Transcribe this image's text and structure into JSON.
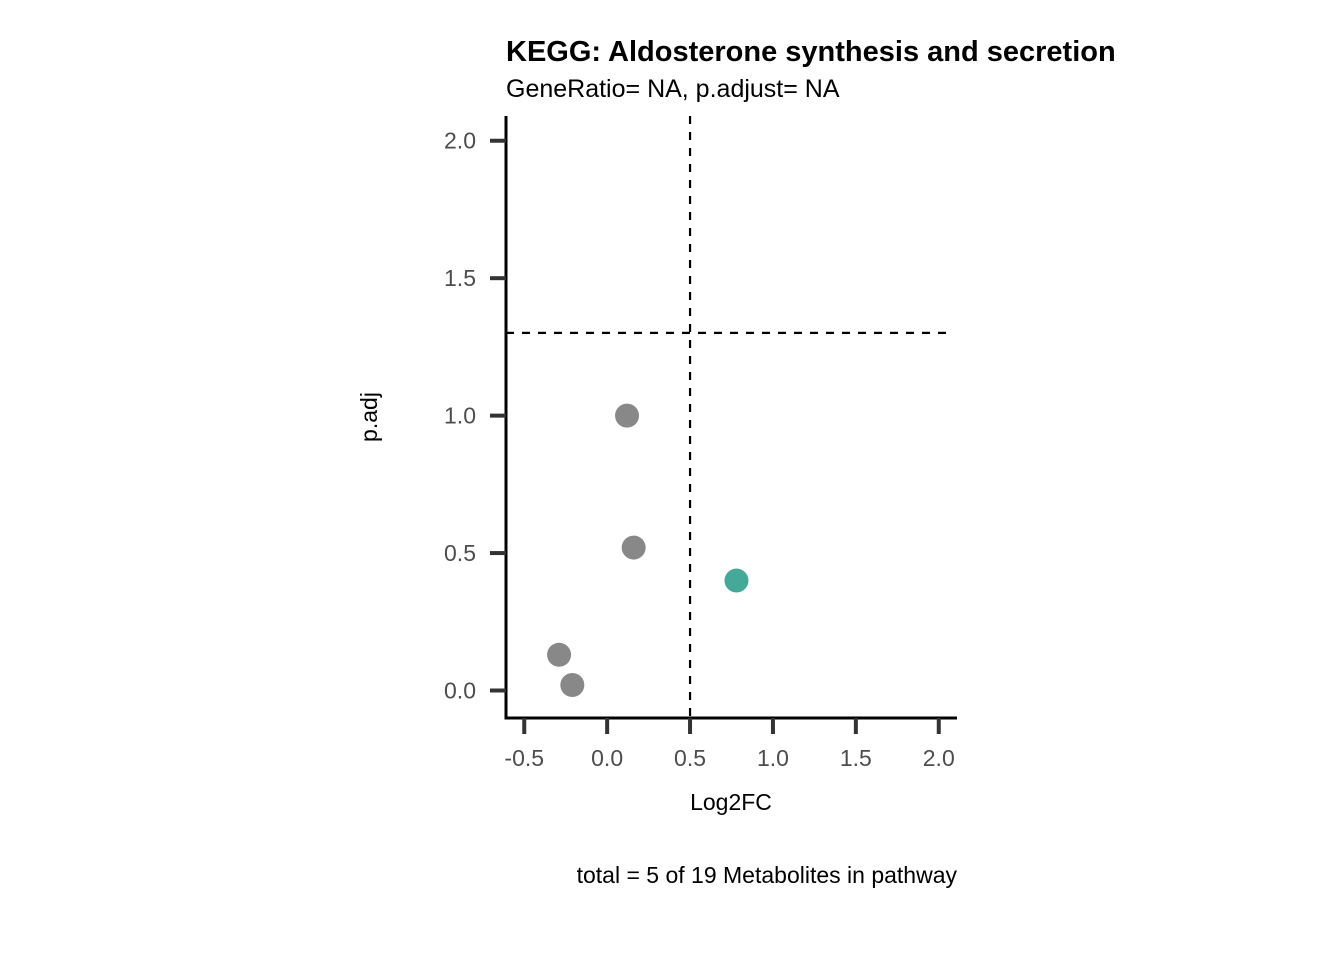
{
  "chart_data": {
    "type": "scatter",
    "title": "KEGG: Aldosterone synthesis and secretion",
    "subtitle": "GeneRatio= NA, p.adjust= NA",
    "xlabel": "Log2FC",
    "ylabel": "p.adj",
    "caption": "total = 5 of 19 Metabolites in pathway",
    "xlim": [
      -0.61,
      2.11
    ],
    "ylim": [
      -0.1,
      2.09
    ],
    "x_ticks": [
      -0.5,
      0.0,
      0.5,
      1.0,
      1.5,
      2.0
    ],
    "x_tick_labels": [
      "-0.5",
      "0.0",
      "0.5",
      "1.0",
      "1.5",
      "2.0"
    ],
    "y_ticks": [
      0.0,
      0.5,
      1.0,
      1.5,
      2.0
    ],
    "y_tick_labels": [
      "0.0",
      "0.5",
      "1.0",
      "1.5",
      "2.0"
    ],
    "vline": 0.5,
    "hline": 1.301,
    "grid": false,
    "colors": {
      "not_significant": "#888888",
      "up": "#45a99a",
      "axis": "#000000",
      "tick": "#333333"
    },
    "points": [
      {
        "x": 0.12,
        "y": 1.0,
        "group": "not_significant"
      },
      {
        "x": 0.16,
        "y": 0.52,
        "group": "not_significant"
      },
      {
        "x": 0.78,
        "y": 0.4,
        "group": "up"
      },
      {
        "x": -0.29,
        "y": 0.13,
        "group": "not_significant"
      },
      {
        "x": -0.21,
        "y": 0.02,
        "group": "not_significant"
      }
    ]
  }
}
